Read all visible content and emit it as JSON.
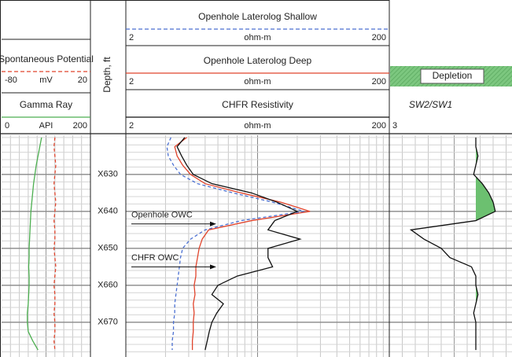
{
  "chart_data": {
    "type": "well_log",
    "depth_label": "Depth, ft",
    "ylim": [
      619.4,
      679.4
    ],
    "yticks": [
      {
        "value": 630,
        "label": "X630"
      },
      {
        "value": 640,
        "label": "X640"
      },
      {
        "value": 650,
        "label": "X650"
      },
      {
        "value": 660,
        "label": "X660"
      },
      {
        "value": 670,
        "label": "X670"
      }
    ],
    "depths": [
      620,
      622.5,
      625,
      627.5,
      630,
      632.5,
      635,
      637.5,
      640,
      642.5,
      645,
      647.5,
      650,
      652.5,
      655,
      657.5,
      660,
      662.5,
      665,
      667.5,
      670,
      672.5,
      675,
      677.5
    ],
    "tracks": [
      {
        "scale": "linear",
        "curves": [
          {
            "name": "Spontaneous Potential",
            "color": "#e0442c",
            "dashed": true,
            "unit": "mV",
            "xlim": [
              -80,
              20
            ],
            "values": [
              -20,
              -21,
              -20,
              -19,
              -20,
              -21,
              -20,
              -19,
              -20,
              -21,
              -20,
              -20,
              -21,
              -20,
              -19,
              -20,
              -21,
              -20,
              -20,
              -21,
              -20,
              -20,
              -21,
              -20
            ]
          },
          {
            "name": "Gamma Ray",
            "color": "#4caf50",
            "dashed": false,
            "unit": "API",
            "xlim": [
              0,
              200
            ],
            "values": [
              90,
              86,
              82,
              78,
              75,
              72,
              70,
              68,
              66,
              65,
              64,
              63,
              62,
              62,
              61,
              62,
              62,
              61,
              60,
              58,
              58,
              60,
              70,
              82
            ]
          }
        ]
      },
      {
        "scale": "log",
        "curves": [
          {
            "name": "Openhole Laterolog Shallow",
            "color": "#4a6fd1",
            "dashed": true,
            "unit": "ohm-m",
            "xlim": [
              2,
              200
            ],
            "values": [
              4.4,
              4.1,
              4.2,
              4.6,
              5.2,
              7,
              13,
              26,
              45,
              15,
              8,
              6.2,
              5.4,
              5.2,
              5.1,
              5.0,
              4.9,
              4.8,
              4.7,
              4.7,
              4.6,
              4.6,
              4.5,
              4.5
            ]
          },
          {
            "name": "Openhole Laterolog Deep",
            "color": "#e0442c",
            "dashed": false,
            "unit": "ohm-m",
            "xlim": [
              2,
              200
            ],
            "values": [
              5.8,
              4.7,
              4.9,
              5.4,
              6.2,
              8,
              15,
              30,
              50,
              18,
              8.5,
              7.6,
              7.2,
              7,
              6.8,
              6.8,
              6.6,
              6.7,
              6.5,
              6.6,
              6.5,
              6.5,
              6.4,
              6.4
            ]
          },
          {
            "name": "CHFR Resistivity",
            "color": "#111111",
            "dashed": false,
            "unit": "ohm-m",
            "xlim": [
              2,
              200
            ],
            "values": [
              5.6,
              4.9,
              5.3,
              5.8,
              6.5,
              9,
              18,
              28,
              40,
              27,
              24,
              42,
              24,
              24,
              26,
              14,
              10,
              9,
              11,
              9.8,
              9,
              8.6,
              8.3,
              8
            ]
          }
        ],
        "annotations": [
          {
            "text": "Openhole OWC",
            "depth": 643.4
          },
          {
            "text": "CHFR OWC",
            "depth": 655
          }
        ]
      },
      {
        "scale": "linear",
        "fill_label": "Depletion",
        "fill_color": "#6cc070",
        "fill_baseline": 1,
        "curves": [
          {
            "name": "SW2/SW1",
            "color": "#111111",
            "dashed": false,
            "xlim": [
              3,
              0
            ],
            "values": [
              1.0,
              1.0,
              0.95,
              1.0,
              1.05,
              0.85,
              0.7,
              0.6,
              0.55,
              1.0,
              2.5,
              2.2,
              1.8,
              1.6,
              1.1,
              1.0,
              1.0,
              0.95,
              1.0,
              1.05,
              1.0,
              1.0,
              1.0,
              1.0
            ]
          }
        ]
      }
    ]
  }
}
